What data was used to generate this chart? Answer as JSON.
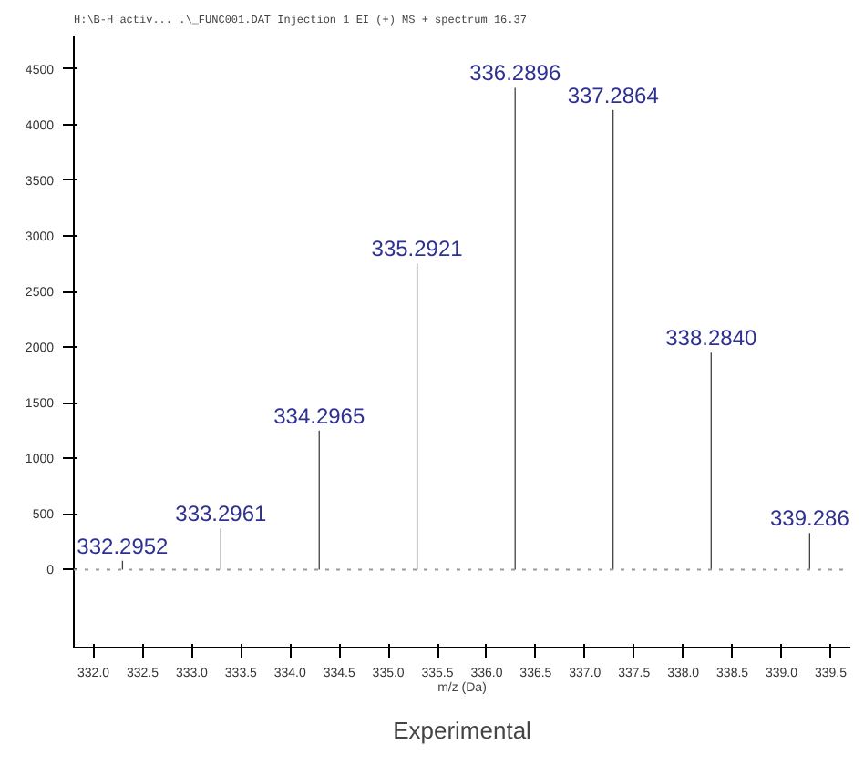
{
  "chart_data": {
    "type": "bar",
    "subtitle": "H:\\B-H activ... .\\_FUNC001.DAT Injection 1 EI (+) MS + spectrum 16.37",
    "title": "Experimental",
    "xlabel": "m/z (Da)",
    "x": [
      332.2952,
      333.2961,
      334.2965,
      335.2921,
      336.2896,
      337.2864,
      338.284,
      339.286
    ],
    "values": [
      80,
      370,
      1250,
      2750,
      4330,
      4130,
      1950,
      330
    ],
    "annotations": [
      {
        "text": "332.2952",
        "x": 332.2952,
        "y": 80
      },
      {
        "text": "333.2961",
        "x": 333.2961,
        "y": 370
      },
      {
        "text": "334.2965",
        "x": 334.2965,
        "y": 1250
      },
      {
        "text": "335.2921",
        "x": 335.2921,
        "y": 2750
      },
      {
        "text": "336.2896",
        "x": 336.2896,
        "y": 4330
      },
      {
        "text": "337.2864",
        "x": 337.2864,
        "y": 4130
      },
      {
        "text": "338.2840",
        "x": 338.284,
        "y": 1950
      },
      {
        "text": "339.286",
        "x": 339.286,
        "y": 330
      }
    ],
    "color": "#404040",
    "xlim": [
      331.8,
      339.7
    ],
    "ylim": [
      -700,
      4800
    ],
    "xticks": [
      {
        "value": 332.0,
        "label": "332.0"
      },
      332.5,
      {
        "value": 333.0,
        "label": "333.0"
      },
      333.5,
      {
        "value": 334.0,
        "label": "334.0"
      },
      334.5,
      {
        "value": 335.0,
        "label": "335.0"
      },
      335.5,
      {
        "value": 336.0,
        "label": "336.0"
      },
      336.5,
      {
        "value": 337.0,
        "label": "337.0"
      },
      337.5,
      {
        "value": 338.0,
        "label": "338.0"
      },
      338.5,
      {
        "value": 339.0,
        "label": "339.0"
      },
      339.5
    ],
    "yticks": [
      0,
      500,
      1000,
      1500,
      2000,
      2500,
      3000,
      3500,
      4000,
      4500
    ],
    "ref_lines": [
      {
        "axis": "y",
        "value": 0,
        "color": "#999999",
        "line_style": "dotted"
      }
    ],
    "grid": false
  }
}
